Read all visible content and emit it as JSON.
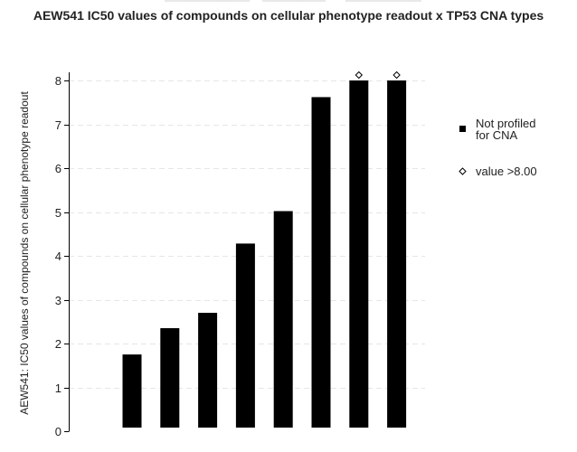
{
  "chart_data": {
    "type": "bar",
    "title": "AEW541 IC50 values of compounds on cellular phenotype readout x TP53 CNA types",
    "ylabel": "AEW541: IC50 values of compounds on cellular phenotype readout",
    "xlabel": "",
    "ylim": [
      0,
      8
    ],
    "yticks": [
      0,
      1,
      2,
      3,
      4,
      5,
      6,
      7,
      8
    ],
    "grid": true,
    "values": [
      1.75,
      2.35,
      2.7,
      4.28,
      5.02,
      7.62,
      8.0,
      8.0
    ],
    "capped": [
      false,
      false,
      false,
      false,
      false,
      false,
      true,
      true
    ],
    "bar_color": "#000000",
    "legend": {
      "placement": "right",
      "items": [
        {
          "marker": "square",
          "label_line1": "Not profiled",
          "label_line2": "for CNA"
        },
        {
          "marker": "diamond",
          "label_line1": "value >8.00",
          "label_line2": ""
        }
      ]
    }
  }
}
